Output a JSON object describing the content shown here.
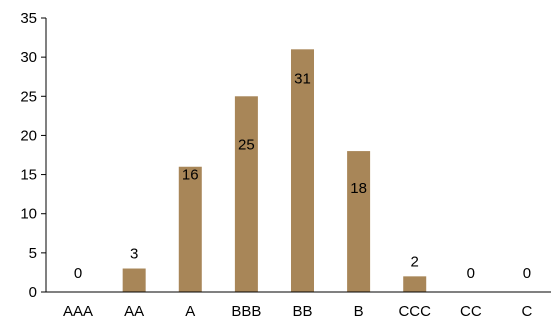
{
  "chart_data": {
    "type": "bar",
    "categories": [
      "AAA",
      "AA",
      "A",
      "BBB",
      "BB",
      "B",
      "CCC",
      "CC",
      "C"
    ],
    "values": [
      0,
      3,
      16,
      25,
      31,
      18,
      2,
      0,
      0
    ],
    "data_labels": [
      "0",
      "3",
      "16",
      "25",
      "31",
      "18",
      "2",
      "0",
      "0"
    ],
    "yticks": [
      "0",
      "5",
      "10",
      "15",
      "20",
      "25",
      "30",
      "35"
    ],
    "title": "",
    "xlabel": "",
    "ylabel": "",
    "ylim": [
      0,
      35
    ],
    "bar_color": "#a88658",
    "axis_color": "#000000",
    "grid": false,
    "legend": "none"
  }
}
